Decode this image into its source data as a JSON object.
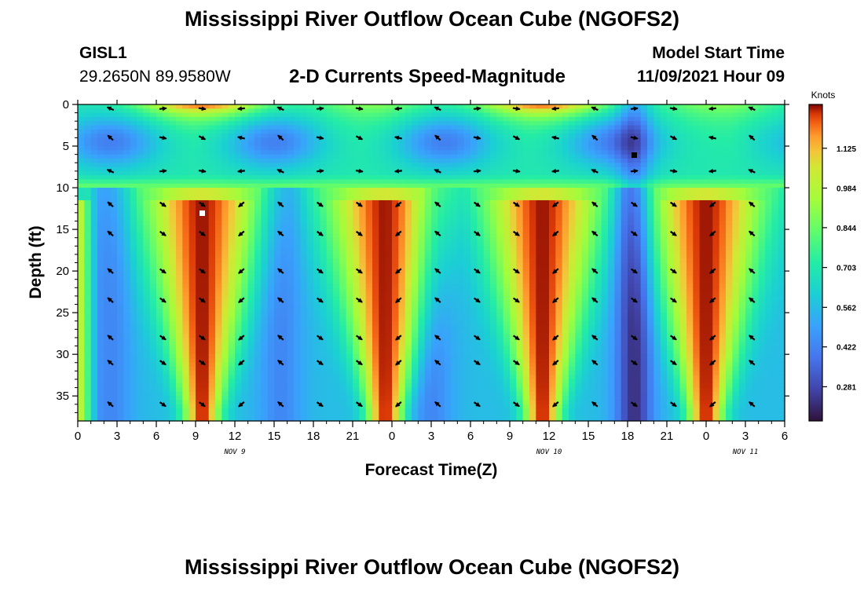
{
  "header": {
    "title": "Mississippi River Outflow Ocean Cube (NGOFS2)",
    "station": "GISL1",
    "coordinates": "29.2650N  89.9580W",
    "subtitle": "2-D Currents Speed-Magnitude",
    "model_start_label": "Model Start Time",
    "model_start_value": "11/09/2021 Hour 09"
  },
  "footer": {
    "title": "Mississippi River Outflow Ocean Cube (NGOFS2)"
  },
  "colors": {
    "background": "#ffffff",
    "text": "#000000"
  },
  "chart_data": {
    "type": "heatmap",
    "xlabel": "Forecast Time(Z)",
    "ylabel": "Depth (ft)",
    "xlim": [
      0,
      54
    ],
    "ylim": [
      38,
      0
    ],
    "x_ticks": [
      0,
      3,
      6,
      9,
      12,
      15,
      18,
      21,
      24,
      27,
      30,
      33,
      36,
      39,
      42,
      45,
      48,
      51,
      54
    ],
    "x_tick_labels": [
      "0",
      "3",
      "6",
      "9",
      "12",
      "15",
      "18",
      "21",
      "0",
      "3",
      "6",
      "9",
      "12",
      "15",
      "18",
      "21",
      "0",
      "3",
      "6"
    ],
    "y_ticks": [
      0,
      5,
      10,
      15,
      20,
      25,
      30,
      35
    ],
    "y_tick_labels": [
      "0",
      "5",
      "10",
      "15",
      "20",
      "25",
      "30",
      "35"
    ],
    "date_labels": [
      {
        "x": 12,
        "label": "NOV 9"
      },
      {
        "x": 36,
        "label": "NOV 10"
      },
      {
        "x": 51,
        "label": "NOV 11"
      }
    ],
    "colorbar": {
      "label": "Knots",
      "ticks": [
        0.281,
        0.422,
        0.562,
        0.703,
        0.844,
        0.984,
        1.125
      ],
      "tick_labels": [
        "0.281",
        "0.422",
        "0.562",
        "0.703",
        "0.844",
        "0.984",
        "1.125"
      ],
      "range": [
        0.16,
        1.28
      ]
    },
    "high_speed_columns_hours": [
      9.5,
      23.5,
      35.5,
      48
    ],
    "low_speed_columns_hours": [
      2.5,
      15.5,
      27,
      42.5
    ],
    "surface_high_hours": [
      9.5,
      35.5
    ],
    "arrow_times_hours": [
      2.5,
      6.5,
      9.5,
      12.5,
      15.5,
      18.5,
      21.5,
      24.5,
      27.5,
      30.5,
      33.5,
      36.5,
      39.5,
      42.5,
      45.5,
      48.5,
      51.5
    ],
    "arrow_depths_ft": [
      0.5,
      4,
      8,
      12,
      15.5,
      20,
      23.5,
      28,
      31,
      36
    ]
  }
}
